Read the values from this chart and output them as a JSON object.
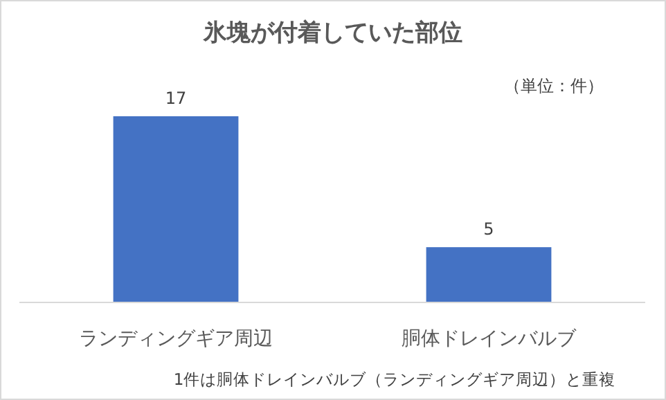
{
  "chart_data": {
    "type": "bar",
    "title": "氷塊が付着していた部位",
    "categories": [
      "ランディングギア周辺",
      "胴体ドレインバルブ"
    ],
    "values": [
      17,
      5
    ],
    "color": "#4472c4",
    "data_labels": true,
    "annotations": [
      "（単位：件）",
      "1件は胴体ドレインバルブ（ランディングギア周辺）と重複"
    ]
  }
}
